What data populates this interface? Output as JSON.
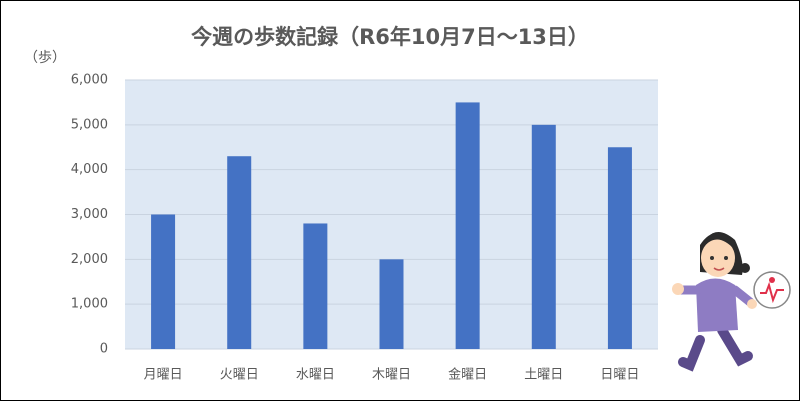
{
  "chart_data": {
    "type": "bar",
    "title": "今週の歩数記録（R6年10月7日～13日）",
    "y_label": "（歩）",
    "categories": [
      "月曜日",
      "火曜日",
      "水曜日",
      "木曜日",
      "金曜日",
      "土曜日",
      "日曜日"
    ],
    "values": [
      3000,
      4300,
      2800,
      2000,
      5500,
      5000,
      4500
    ],
    "color": "#4472c4",
    "ylim": [
      0,
      6000
    ],
    "yticks": [
      0,
      {
        "value": 1000,
        "label": "1,000"
      },
      {
        "value": 2000,
        "label": "2,000"
      },
      {
        "value": 3000,
        "label": "3,000"
      },
      {
        "value": 4000,
        "label": "4,000"
      },
      {
        "value": 5000,
        "label": "5,000"
      },
      {
        "value": 6000,
        "label": "6,000"
      }
    ],
    "grid": true
  }
}
